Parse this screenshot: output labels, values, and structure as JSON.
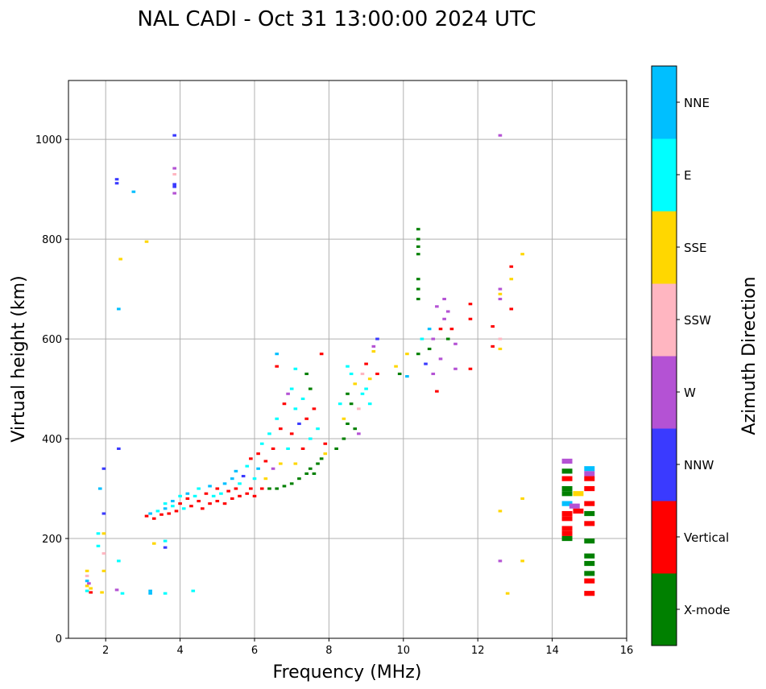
{
  "chart_data": {
    "type": "scatter",
    "title": "NAL CADI - Oct 31 13:00:00 2024 UTC",
    "xlabel": "Frequency (MHz)",
    "ylabel": "Virtual height (km)",
    "xlim": [
      1,
      16
    ],
    "ylim": [
      0,
      1118
    ],
    "xticks": [
      2,
      4,
      6,
      8,
      10,
      12,
      14,
      16
    ],
    "yticks": [
      0,
      200,
      400,
      600,
      800,
      1000
    ],
    "grid": true,
    "colorbar": {
      "label": "Azimuth Direction",
      "categories": [
        {
          "name": "X-mode",
          "color": "#008000"
        },
        {
          "name": "Vertical",
          "color": "#ff0000"
        },
        {
          "name": "NNW",
          "color": "#3a3aff"
        },
        {
          "name": "W",
          "color": "#b452d4"
        },
        {
          "name": "SSW",
          "color": "#ffb6c1"
        },
        {
          "name": "SSE",
          "color": "#ffd700"
        },
        {
          "name": "E",
          "color": "#00ffff"
        },
        {
          "name": "NNE",
          "color": "#00bfff"
        }
      ]
    },
    "points_format": [
      "frequency_MHz",
      "height_km",
      "category_index"
    ],
    "points": [
      [
        1.5,
        95,
        6
      ],
      [
        1.5,
        105,
        5
      ],
      [
        1.5,
        115,
        7
      ],
      [
        1.5,
        125,
        4
      ],
      [
        1.5,
        135,
        5
      ],
      [
        1.6,
        92,
        1
      ],
      [
        1.6,
        100,
        5
      ],
      [
        1.55,
        110,
        3
      ],
      [
        1.9,
        92,
        5
      ],
      [
        1.95,
        135,
        5
      ],
      [
        1.95,
        170,
        4
      ],
      [
        1.95,
        210,
        5
      ],
      [
        1.95,
        250,
        2
      ],
      [
        1.95,
        340,
        2
      ],
      [
        1.85,
        300,
        7
      ],
      [
        1.8,
        210,
        6
      ],
      [
        1.8,
        185,
        6
      ],
      [
        2.3,
        920,
        2
      ],
      [
        2.3,
        912,
        2
      ],
      [
        2.75,
        895,
        7
      ],
      [
        2.4,
        760,
        5
      ],
      [
        3.1,
        795,
        5
      ],
      [
        2.35,
        660,
        7
      ],
      [
        2.35,
        380,
        2
      ],
      [
        2.35,
        155,
        6
      ],
      [
        2.3,
        97,
        3
      ],
      [
        2.45,
        90,
        6
      ],
      [
        3.2,
        95,
        7
      ],
      [
        3.2,
        90,
        7
      ],
      [
        3.3,
        190,
        5
      ],
      [
        3.6,
        195,
        6
      ],
      [
        3.6,
        182,
        2
      ],
      [
        3.6,
        90,
        6
      ],
      [
        3.85,
        1008,
        2
      ],
      [
        3.85,
        942,
        3
      ],
      [
        3.85,
        930,
        4
      ],
      [
        3.85,
        910,
        2
      ],
      [
        3.85,
        905,
        2
      ],
      [
        3.85,
        892,
        3
      ],
      [
        4.35,
        95,
        6
      ],
      [
        3.1,
        245,
        1
      ],
      [
        3.2,
        250,
        7
      ],
      [
        3.3,
        240,
        1
      ],
      [
        3.4,
        255,
        6
      ],
      [
        3.5,
        248,
        1
      ],
      [
        3.6,
        260,
        7
      ],
      [
        3.6,
        270,
        6
      ],
      [
        3.7,
        250,
        1
      ],
      [
        3.8,
        265,
        6
      ],
      [
        3.8,
        275,
        7
      ],
      [
        3.9,
        255,
        1
      ],
      [
        4.0,
        270,
        1
      ],
      [
        4.0,
        285,
        6
      ],
      [
        4.1,
        260,
        6
      ],
      [
        4.2,
        280,
        1
      ],
      [
        4.2,
        290,
        7
      ],
      [
        4.3,
        265,
        1
      ],
      [
        4.4,
        285,
        6
      ],
      [
        4.5,
        275,
        1
      ],
      [
        4.5,
        300,
        6
      ],
      [
        4.6,
        260,
        1
      ],
      [
        4.7,
        290,
        1
      ],
      [
        4.8,
        270,
        1
      ],
      [
        4.8,
        305,
        7
      ],
      [
        4.9,
        285,
        6
      ],
      [
        5.0,
        300,
        1
      ],
      [
        5.0,
        275,
        1
      ],
      [
        5.1,
        290,
        6
      ],
      [
        5.2,
        310,
        7
      ],
      [
        5.2,
        270,
        1
      ],
      [
        5.3,
        295,
        1
      ],
      [
        5.4,
        320,
        7
      ],
      [
        5.4,
        280,
        1
      ],
      [
        5.5,
        300,
        1
      ],
      [
        5.5,
        335,
        7
      ],
      [
        5.6,
        285,
        1
      ],
      [
        5.6,
        310,
        6
      ],
      [
        5.7,
        325,
        2
      ],
      [
        5.8,
        290,
        1
      ],
      [
        5.8,
        345,
        6
      ],
      [
        5.9,
        300,
        1
      ],
      [
        5.9,
        360,
        1
      ],
      [
        6.0,
        320,
        6
      ],
      [
        6.0,
        285,
        1
      ],
      [
        6.1,
        370,
        1
      ],
      [
        6.1,
        340,
        7
      ],
      [
        6.2,
        300,
        1
      ],
      [
        6.2,
        390,
        6
      ],
      [
        6.3,
        355,
        1
      ],
      [
        6.3,
        320,
        5
      ],
      [
        6.4,
        300,
        0
      ],
      [
        6.4,
        410,
        6
      ],
      [
        6.5,
        340,
        3
      ],
      [
        6.5,
        380,
        1
      ],
      [
        6.6,
        300,
        0
      ],
      [
        6.6,
        440,
        6
      ],
      [
        6.6,
        570,
        7
      ],
      [
        6.6,
        545,
        1
      ],
      [
        6.7,
        350,
        5
      ],
      [
        6.7,
        420,
        1
      ],
      [
        6.8,
        470,
        1
      ],
      [
        6.8,
        305,
        0
      ],
      [
        6.9,
        380,
        6
      ],
      [
        6.9,
        490,
        3
      ],
      [
        7.0,
        310,
        0
      ],
      [
        7.0,
        410,
        1
      ],
      [
        7.0,
        500,
        6
      ],
      [
        7.1,
        350,
        5
      ],
      [
        7.1,
        460,
        6
      ],
      [
        7.1,
        540,
        6
      ],
      [
        7.2,
        320,
        0
      ],
      [
        7.2,
        430,
        2
      ],
      [
        7.3,
        380,
        1
      ],
      [
        7.3,
        480,
        6
      ],
      [
        7.4,
        330,
        0
      ],
      [
        7.4,
        530,
        0
      ],
      [
        7.4,
        440,
        1
      ],
      [
        7.5,
        340,
        0
      ],
      [
        7.5,
        400,
        6
      ],
      [
        7.5,
        500,
        0
      ],
      [
        7.6,
        330,
        0
      ],
      [
        7.6,
        460,
        1
      ],
      [
        7.7,
        350,
        0
      ],
      [
        7.7,
        420,
        6
      ],
      [
        7.8,
        360,
        0
      ],
      [
        7.8,
        570,
        1
      ],
      [
        7.9,
        370,
        5
      ],
      [
        7.9,
        390,
        1
      ],
      [
        8.2,
        380,
        0
      ],
      [
        8.3,
        470,
        6
      ],
      [
        8.4,
        400,
        0
      ],
      [
        8.4,
        440,
        5
      ],
      [
        8.5,
        430,
        0
      ],
      [
        8.5,
        490,
        0
      ],
      [
        8.5,
        545,
        6
      ],
      [
        8.6,
        470,
        0
      ],
      [
        8.6,
        530,
        6
      ],
      [
        8.7,
        420,
        0
      ],
      [
        8.7,
        510,
        5
      ],
      [
        8.8,
        460,
        4
      ],
      [
        8.8,
        410,
        3
      ],
      [
        8.9,
        490,
        6
      ],
      [
        8.9,
        530,
        4
      ],
      [
        9.0,
        500,
        6
      ],
      [
        9.0,
        550,
        1
      ],
      [
        9.1,
        470,
        6
      ],
      [
        9.1,
        520,
        5
      ],
      [
        9.2,
        585,
        3
      ],
      [
        9.2,
        575,
        5
      ],
      [
        9.3,
        600,
        2
      ],
      [
        9.3,
        530,
        1
      ],
      [
        9.8,
        545,
        5
      ],
      [
        9.9,
        530,
        0
      ],
      [
        10.1,
        570,
        5
      ],
      [
        10.1,
        525,
        7
      ],
      [
        10.4,
        570,
        0
      ],
      [
        10.4,
        680,
        0
      ],
      [
        10.4,
        700,
        0
      ],
      [
        10.4,
        720,
        0
      ],
      [
        10.4,
        770,
        0
      ],
      [
        10.4,
        785,
        0
      ],
      [
        10.4,
        800,
        0
      ],
      [
        10.4,
        820,
        0
      ],
      [
        10.5,
        600,
        6
      ],
      [
        10.6,
        550,
        2
      ],
      [
        10.7,
        620,
        7
      ],
      [
        10.7,
        580,
        0
      ],
      [
        10.8,
        600,
        3
      ],
      [
        10.8,
        530,
        3
      ],
      [
        10.9,
        495,
        1
      ],
      [
        10.9,
        665,
        3
      ],
      [
        11.0,
        620,
        1
      ],
      [
        11.0,
        560,
        3
      ],
      [
        11.1,
        680,
        3
      ],
      [
        11.1,
        640,
        3
      ],
      [
        11.2,
        655,
        3
      ],
      [
        11.2,
        600,
        0
      ],
      [
        11.3,
        620,
        1
      ],
      [
        11.4,
        590,
        3
      ],
      [
        11.4,
        540,
        3
      ],
      [
        11.8,
        670,
        1
      ],
      [
        11.8,
        640,
        1
      ],
      [
        11.8,
        540,
        1
      ],
      [
        12.4,
        625,
        1
      ],
      [
        12.4,
        585,
        1
      ],
      [
        12.6,
        1008,
        3
      ],
      [
        12.6,
        700,
        3
      ],
      [
        12.6,
        690,
        5
      ],
      [
        12.6,
        680,
        3
      ],
      [
        12.6,
        600,
        4
      ],
      [
        12.6,
        580,
        5
      ],
      [
        12.6,
        255,
        5
      ],
      [
        12.6,
        155,
        3
      ],
      [
        12.9,
        745,
        1
      ],
      [
        12.9,
        720,
        5
      ],
      [
        12.9,
        660,
        1
      ],
      [
        13.2,
        770,
        5
      ],
      [
        13.2,
        280,
        5
      ],
      [
        13.2,
        155,
        5
      ],
      [
        12.8,
        90,
        5
      ],
      [
        14.4,
        355,
        3
      ],
      [
        14.4,
        335,
        0
      ],
      [
        14.4,
        320,
        1
      ],
      [
        14.4,
        300,
        0
      ],
      [
        14.4,
        290,
        0
      ],
      [
        14.4,
        270,
        7
      ],
      [
        14.4,
        250,
        1
      ],
      [
        14.4,
        240,
        1
      ],
      [
        14.4,
        220,
        1
      ],
      [
        14.4,
        210,
        1
      ],
      [
        14.4,
        200,
        0
      ],
      [
        14.6,
        265,
        3
      ],
      [
        14.7,
        255,
        1
      ],
      [
        14.7,
        290,
        5
      ],
      [
        15.0,
        340,
        7
      ],
      [
        15.0,
        330,
        3
      ],
      [
        15.0,
        320,
        1
      ],
      [
        15.0,
        300,
        1
      ],
      [
        15.0,
        270,
        1
      ],
      [
        15.0,
        250,
        0
      ],
      [
        15.0,
        230,
        1
      ],
      [
        15.0,
        195,
        0
      ],
      [
        15.0,
        165,
        0
      ],
      [
        15.0,
        150,
        0
      ],
      [
        15.0,
        130,
        0
      ],
      [
        15.0,
        115,
        1
      ],
      [
        15.0,
        90,
        1
      ]
    ]
  }
}
